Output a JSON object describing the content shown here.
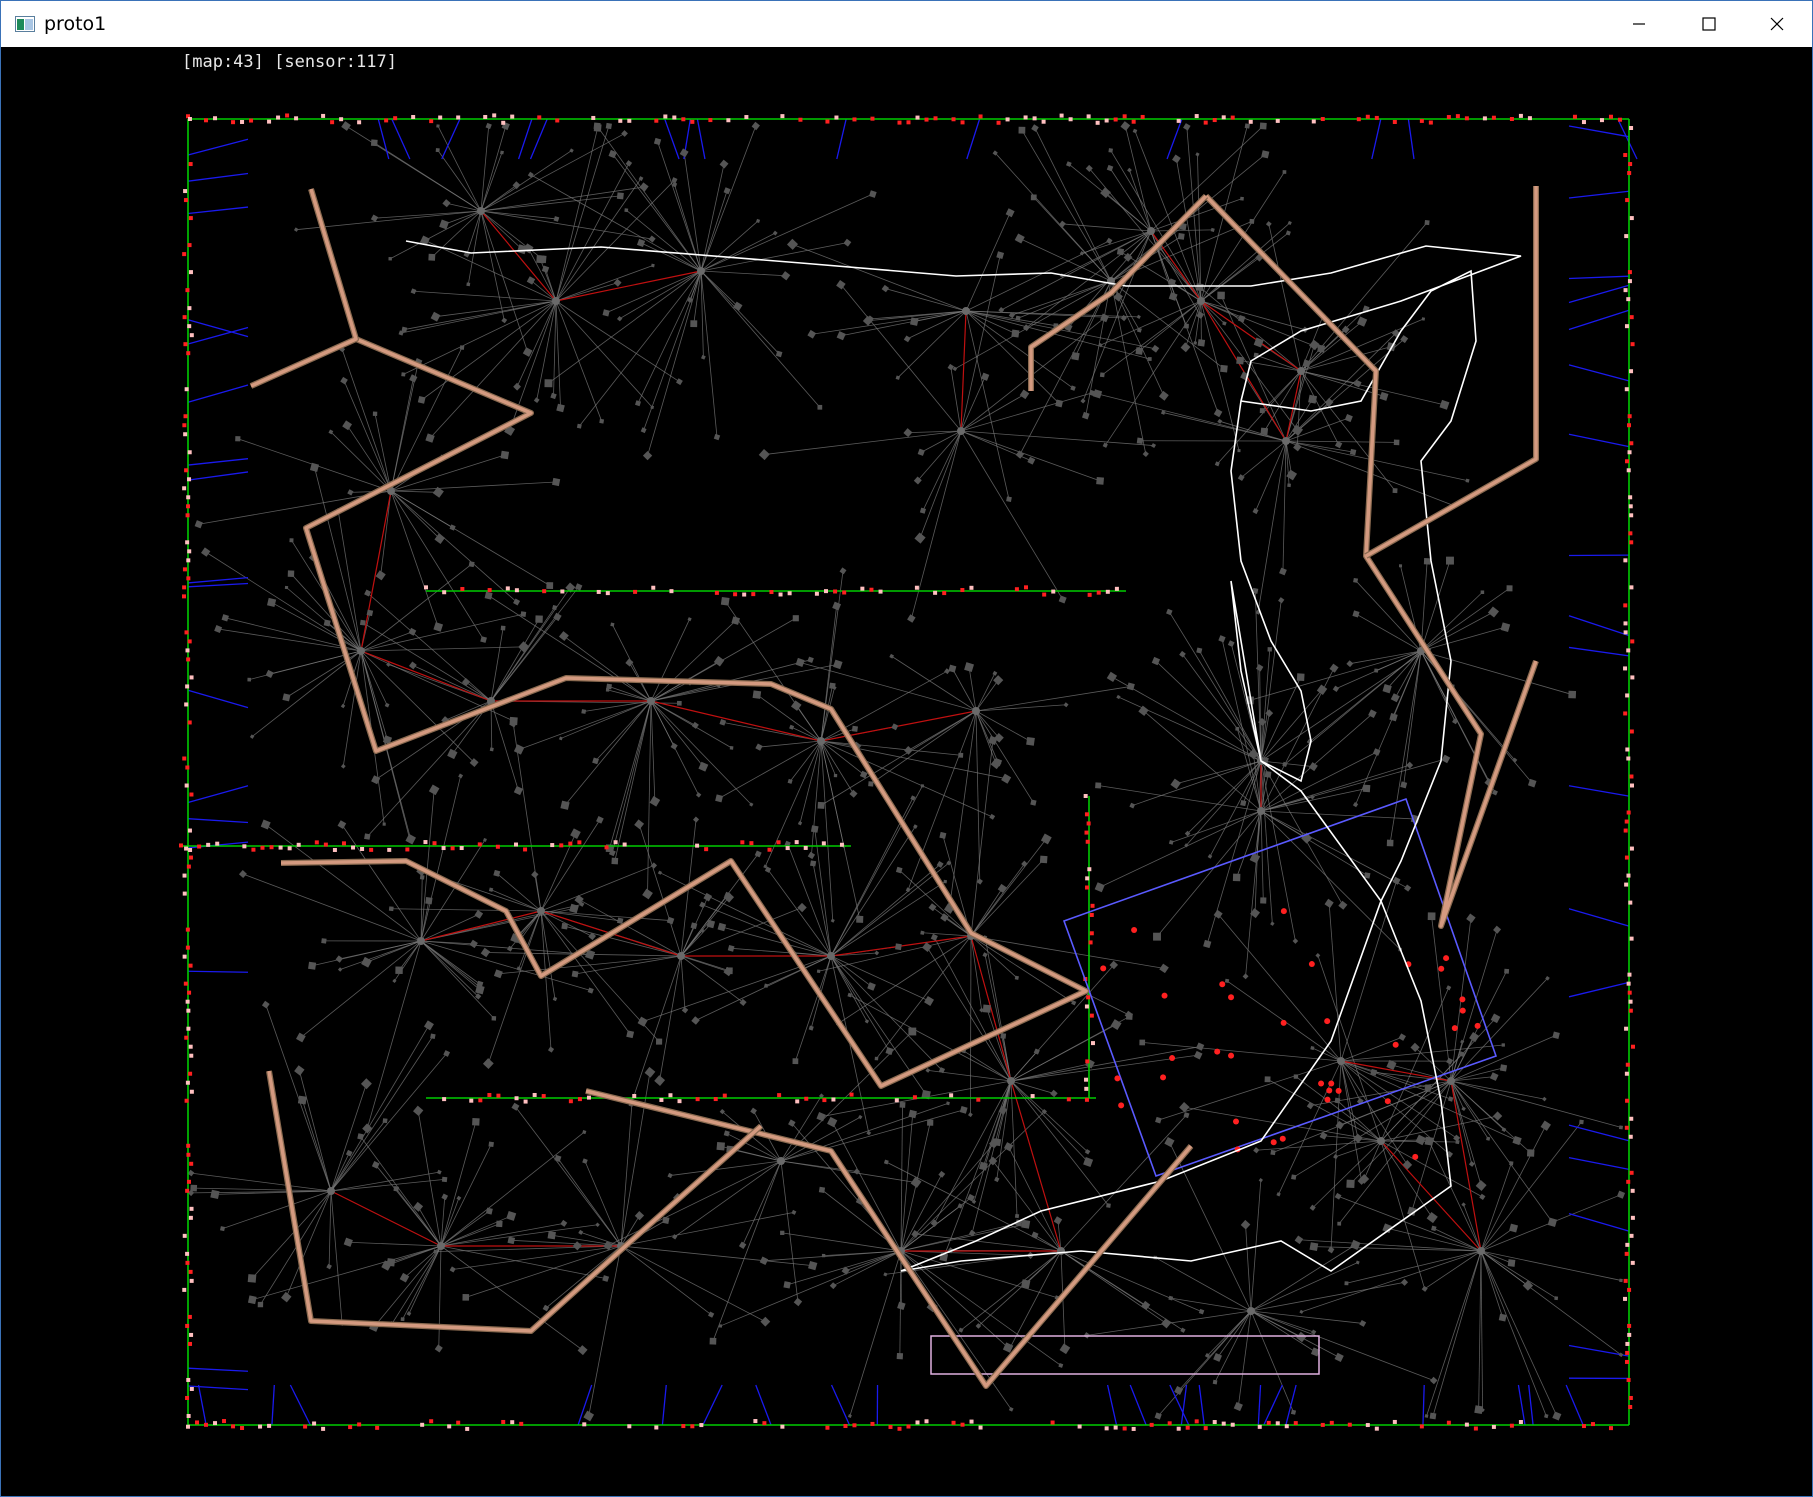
{
  "window": {
    "title": "proto1",
    "icons": {
      "app": "app-window-icon",
      "minimize": "minimize-icon",
      "maximize": "maximize-icon",
      "close": "close-icon"
    }
  },
  "status": {
    "text": "[map:43] [sensor:117]"
  },
  "colors": {
    "background": "#000000",
    "boundary": "#00cc00",
    "ray": "#7a7a7a",
    "node": "#555555",
    "edge_red": "#c01010",
    "sensor_link": "#1a1aee",
    "path_trace": "#ffffff",
    "planned_path": "#d49a80",
    "hit_point": "#ff2020",
    "hit_point_light": "#ffc0c0"
  }
}
